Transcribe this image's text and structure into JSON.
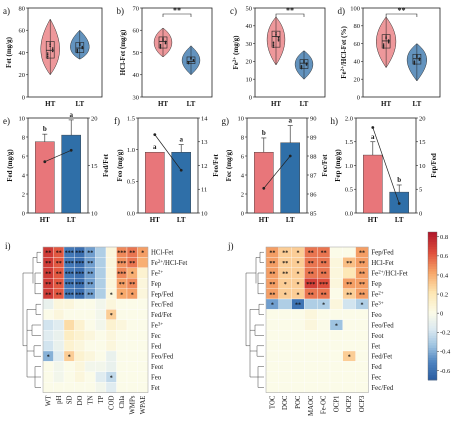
{
  "colors": {
    "HT": "#e8767a",
    "LT": "#2f6fa8",
    "low": "#2c5fa3",
    "mid": "#fbfbe8",
    "high": "#b2182b",
    "line": "#222222"
  },
  "chart_data": [
    {
      "id": "a",
      "panel_label": "a)",
      "type": "violin",
      "categories": [
        "HT",
        "LT"
      ],
      "ylabel": "Fet (mg/g)",
      "ylim": [
        0,
        80
      ],
      "yticks": [
        0,
        20,
        40,
        60,
        80
      ],
      "box": [
        [
          35,
          42,
          50
        ],
        [
          40,
          44,
          49
        ]
      ],
      "whisk": [
        [
          20,
          70
        ],
        [
          34,
          60
        ]
      ],
      "sig": ""
    },
    {
      "id": "b",
      "panel_label": "b)",
      "type": "violin",
      "categories": [
        "HT",
        "LT"
      ],
      "ylabel": "HCl-Fet (mg/g)",
      "ylim": [
        30,
        70
      ],
      "yticks": [
        30,
        40,
        50,
        60,
        70
      ],
      "box": [
        [
          52,
          55,
          57
        ],
        [
          45,
          46,
          48
        ]
      ],
      "whisk": [
        [
          48,
          61
        ],
        [
          40,
          53
        ]
      ],
      "sig": "**"
    },
    {
      "id": "c",
      "panel_label": "c)",
      "type": "violin",
      "categories": [
        "HT",
        "LT"
      ],
      "ylabel": "Fe2+ (mg/g)",
      "ylim": [
        0,
        50
      ],
      "yticks": [
        0,
        10,
        20,
        30,
        40,
        50
      ],
      "box": [
        [
          28,
          34,
          37
        ],
        [
          16,
          19,
          21
        ]
      ],
      "whisk": [
        [
          18,
          45
        ],
        [
          10,
          26
        ]
      ],
      "sig": "**"
    },
    {
      "id": "d",
      "panel_label": "d)",
      "type": "violin",
      "categories": [
        "HT",
        "LT"
      ],
      "ylabel": "Fe2+/HCl-Fet (%)",
      "ylim": [
        0,
        100
      ],
      "yticks": [
        0,
        20,
        40,
        60,
        80,
        100
      ],
      "box": [
        [
          55,
          63,
          70
        ],
        [
          37,
          43,
          48
        ]
      ],
      "whisk": [
        [
          33,
          90
        ],
        [
          18,
          60
        ]
      ],
      "sig": "**"
    },
    {
      "id": "e",
      "panel_label": "e)",
      "type": "bar+line",
      "categories": [
        "HT",
        "LT"
      ],
      "ylabel": "Fed (mg/g)",
      "ylabel_right": "Fed/Fet",
      "ylim": [
        0,
        10
      ],
      "yticks": [
        0,
        2,
        4,
        6,
        8,
        10
      ],
      "y2lim": [
        10,
        20
      ],
      "y2ticks": [
        10,
        15,
        20
      ],
      "values": [
        7.5,
        8.2
      ],
      "errors": [
        0.8,
        1.6
      ],
      "line_values": [
        15.4,
        16.6
      ],
      "letters": [
        "b",
        "a"
      ]
    },
    {
      "id": "f",
      "panel_label": "f)",
      "type": "bar+line",
      "categories": [
        "HT",
        "LT"
      ],
      "ylabel": "Feo (mg/g)",
      "ylabel_right": "Feo/Fet",
      "ylim": [
        0.0,
        1.5
      ],
      "yticks": [
        0.0,
        0.5,
        1.0,
        1.5
      ],
      "y2lim": [
        10,
        14
      ],
      "y2ticks": [
        10,
        11,
        12,
        13,
        14
      ],
      "values": [
        0.96,
        0.96
      ],
      "errors": [
        0,
        0.12
      ],
      "line_values": [
        13.3,
        11.8
      ],
      "letters": [
        "a",
        "a"
      ]
    },
    {
      "id": "g",
      "panel_label": "g)",
      "type": "bar+line",
      "categories": [
        "HT",
        "LT"
      ],
      "ylabel": "Fec (mg/g)",
      "ylabel_right": "Fec/Fet",
      "ylim": [
        0,
        10
      ],
      "yticks": [
        0,
        2,
        4,
        6,
        8,
        10
      ],
      "y2lim": [
        85,
        90
      ],
      "y2ticks": [
        85,
        86,
        87,
        88,
        89,
        90
      ],
      "values": [
        6.4,
        7.4
      ],
      "errors": [
        1.5,
        1.8
      ],
      "line_values": [
        86.3,
        88.0
      ],
      "letters": [
        "b",
        "a"
      ]
    },
    {
      "id": "h",
      "panel_label": "h)",
      "type": "bar+line",
      "categories": [
        "HT",
        "LT"
      ],
      "ylabel": "Fep (mg/g)",
      "ylabel_right": "Fep/Fed",
      "ylim": [
        0.0,
        2.0
      ],
      "yticks": [
        0.0,
        0.5,
        1.0,
        1.5,
        2.0
      ],
      "y2lim": [
        0,
        20
      ],
      "y2ticks": [
        0,
        5,
        10,
        15,
        20
      ],
      "values": [
        1.22,
        0.44
      ],
      "errors": [
        0.28,
        0.15
      ],
      "line_values": [
        18,
        2
      ],
      "letters": [
        "a",
        "b"
      ]
    },
    {
      "id": "i",
      "panel_label": "i)",
      "type": "heatmap",
      "rows": [
        "HCl-Fet",
        "Fe2+/HCl-Fet",
        "Fe2+",
        "Fep",
        "Fep/Fed",
        "Fec/Fed",
        "Fed/Fet",
        "Fe3+",
        "Fec",
        "Fed",
        "Feo/Fed",
        "Feot",
        "Feo",
        "Fet"
      ],
      "cols": [
        "WT",
        "pH",
        "SD",
        "DO",
        "TN",
        "TP",
        "COD",
        "Chla",
        "WMPs",
        "WPAE"
      ],
      "values": [
        [
          0.72,
          0.62,
          -0.58,
          -0.62,
          -0.45,
          -0.3,
          0.05,
          0.5,
          0.55,
          0.45
        ],
        [
          0.72,
          0.62,
          -0.58,
          -0.62,
          -0.45,
          -0.3,
          0.05,
          0.48,
          0.55,
          0.4
        ],
        [
          0.72,
          0.62,
          -0.58,
          -0.62,
          -0.45,
          -0.3,
          0.05,
          0.5,
          0.4,
          0.1
        ],
        [
          0.72,
          0.62,
          -0.58,
          -0.62,
          -0.45,
          -0.3,
          0.05,
          0.45,
          0.5,
          0.05
        ],
        [
          0.72,
          0.62,
          -0.58,
          -0.62,
          -0.45,
          -0.3,
          0.05,
          0.42,
          0.45,
          0.05
        ],
        [
          -0.1,
          0.05,
          0.05,
          0.0,
          0.0,
          -0.05,
          0.05,
          0.0,
          0.0,
          0.0
        ],
        [
          0.0,
          0.05,
          0.0,
          0.0,
          0.0,
          -0.05,
          0.3,
          0.0,
          0.0,
          0.0
        ],
        [
          -0.2,
          -0.15,
          0.25,
          0.1,
          0.0,
          -0.05,
          0.1,
          0.05,
          0.0,
          0.0
        ],
        [
          -0.15,
          -0.1,
          0.15,
          0.1,
          0.05,
          0.0,
          0.05,
          0.0,
          0.0,
          0.0
        ],
        [
          -0.2,
          -0.1,
          0.1,
          0.05,
          0.0,
          0.0,
          0.05,
          0.0,
          0.0,
          0.0
        ],
        [
          -0.4,
          -0.15,
          0.3,
          0.1,
          0.05,
          0.0,
          -0.1,
          0.0,
          0.0,
          0.0
        ],
        [
          0.0,
          -0.05,
          0.0,
          0.05,
          -0.05,
          -0.05,
          -0.1,
          0.0,
          0.0,
          0.0
        ],
        [
          0.0,
          -0.05,
          0.0,
          0.05,
          0.0,
          -0.15,
          -0.25,
          0.0,
          0.0,
          0.0
        ],
        [
          0.0,
          0.0,
          0.0,
          0.0,
          0.0,
          -0.05,
          -0.15,
          0.0,
          0.0,
          0.0
        ]
      ],
      "stars": [
        [
          "**",
          "**",
          "***",
          "***",
          "**",
          "",
          "",
          "***",
          "**",
          "*"
        ],
        [
          "**",
          "**",
          "***",
          "***",
          "**",
          "",
          "",
          "***",
          "**",
          ""
        ],
        [
          "**",
          "**",
          "***",
          "***",
          "**",
          "",
          "",
          "***",
          "*",
          ""
        ],
        [
          "**",
          "**",
          "***",
          "***",
          "**",
          "",
          "",
          "**",
          "**",
          ""
        ],
        [
          "**",
          "**",
          "***",
          "***",
          "**",
          "",
          "*",
          "*",
          "*",
          ""
        ],
        [
          "",
          "",
          "",
          "",
          "",
          "",
          "",
          "",
          "",
          ""
        ],
        [
          "",
          "",
          "",
          "",
          "",
          "",
          "*",
          "",
          "",
          ""
        ],
        [
          "",
          "",
          "",
          "",
          "",
          "",
          "",
          "",
          "",
          ""
        ],
        [
          "",
          "",
          "",
          "",
          "",
          "",
          "",
          "",
          "",
          ""
        ],
        [
          "",
          "",
          "",
          "",
          "",
          "",
          "",
          "",
          "",
          ""
        ],
        [
          "*",
          "",
          "*",
          "",
          "",
          "",
          "",
          "",
          "",
          ""
        ],
        [
          "",
          "",
          "",
          "",
          "",
          "",
          "",
          "",
          "",
          ""
        ],
        [
          "",
          "",
          "",
          "",
          "",
          "",
          "*",
          "",
          "",
          ""
        ],
        [
          "",
          "",
          "",
          "",
          "",
          "",
          "",
          "",
          "",
          ""
        ]
      ]
    },
    {
      "id": "j",
      "panel_label": "j)",
      "type": "heatmap",
      "rows": [
        "Fep/Fed",
        "HCl-Fet",
        "Fe2+/HCl-Fet",
        "Fep",
        "Fe2+",
        "Fe3+",
        "Feo",
        "Feo/Fed",
        "Feot",
        "Fet",
        "Fed/Fet",
        "Fed",
        "Fec",
        "Fec/Fed"
      ],
      "cols": [
        "TOC",
        "DOC",
        "POC",
        "MAOC",
        "Fe-OC",
        "OCP1",
        "OCP2",
        "OCP3"
      ],
      "values": [
        [
          0.45,
          0.3,
          0.3,
          0.55,
          0.55,
          0.0,
          0.0,
          0.45
        ],
        [
          0.45,
          0.3,
          0.3,
          0.55,
          0.55,
          0.05,
          0.35,
          0.45
        ],
        [
          0.45,
          0.3,
          0.3,
          0.55,
          0.55,
          0.05,
          0.2,
          0.45
        ],
        [
          0.45,
          0.3,
          0.3,
          0.7,
          0.65,
          0.05,
          0.45,
          0.45
        ],
        [
          0.45,
          0.3,
          0.3,
          0.55,
          0.55,
          0.0,
          0.3,
          0.45
        ],
        [
          -0.45,
          -0.3,
          -0.6,
          -0.3,
          -0.3,
          0.05,
          -0.2,
          -0.3
        ],
        [
          0.0,
          0.0,
          0.0,
          0.05,
          0.0,
          0.0,
          0.0,
          0.0
        ],
        [
          0.0,
          0.0,
          0.0,
          0.05,
          0.0,
          -0.35,
          0.0,
          0.0
        ],
        [
          0.0,
          0.0,
          0.0,
          0.0,
          0.0,
          0.0,
          0.0,
          0.0
        ],
        [
          0.0,
          0.0,
          0.0,
          0.0,
          0.0,
          0.0,
          0.0,
          0.0
        ],
        [
          0.0,
          0.0,
          0.0,
          0.0,
          0.0,
          0.0,
          0.3,
          0.0
        ],
        [
          0.0,
          0.0,
          0.0,
          0.0,
          0.0,
          0.0,
          0.0,
          0.0
        ],
        [
          0.0,
          0.0,
          0.0,
          0.0,
          0.0,
          0.0,
          0.0,
          0.0
        ],
        [
          0.0,
          0.0,
          0.0,
          0.0,
          0.0,
          0.0,
          0.0,
          0.0
        ]
      ],
      "stars": [
        [
          "**",
          "**",
          "*",
          "**",
          "**",
          "",
          "",
          "**"
        ],
        [
          "**",
          "**",
          "*",
          "**",
          "**",
          "",
          "**",
          "**"
        ],
        [
          "**",
          "**",
          "*",
          "**",
          "**",
          "",
          "",
          "**"
        ],
        [
          "**",
          "*",
          "*",
          "***",
          "***",
          "",
          "**",
          "**"
        ],
        [
          "**",
          "*",
          "*",
          "**",
          "**",
          "",
          "**",
          "**"
        ],
        [
          "*",
          "",
          "**",
          "",
          "*",
          "",
          "",
          "*"
        ],
        [
          "",
          "",
          "",
          "",
          "",
          "",
          "",
          ""
        ],
        [
          "",
          "",
          "",
          "",
          "",
          "*",
          "",
          ""
        ],
        [
          "",
          "",
          "",
          "",
          "",
          "",
          "",
          ""
        ],
        [
          "",
          "",
          "",
          "",
          "",
          "",
          "",
          ""
        ],
        [
          "",
          "",
          "",
          "",
          "",
          "",
          "*",
          ""
        ],
        [
          "",
          "",
          "",
          "",
          "",
          "",
          "",
          ""
        ],
        [
          "",
          "",
          "",
          "",
          "",
          "",
          "",
          ""
        ],
        [
          "",
          "",
          "",
          "",
          "",
          "",
          "",
          ""
        ]
      ]
    },
    {
      "id": "colorbar",
      "type": "colorbar",
      "ticks": [
        "0.8",
        "0.6",
        "0.4",
        "0.2",
        "0",
        "-0.2",
        "-0.4",
        "-0.6"
      ],
      "range": [
        -0.7,
        0.85
      ]
    }
  ]
}
